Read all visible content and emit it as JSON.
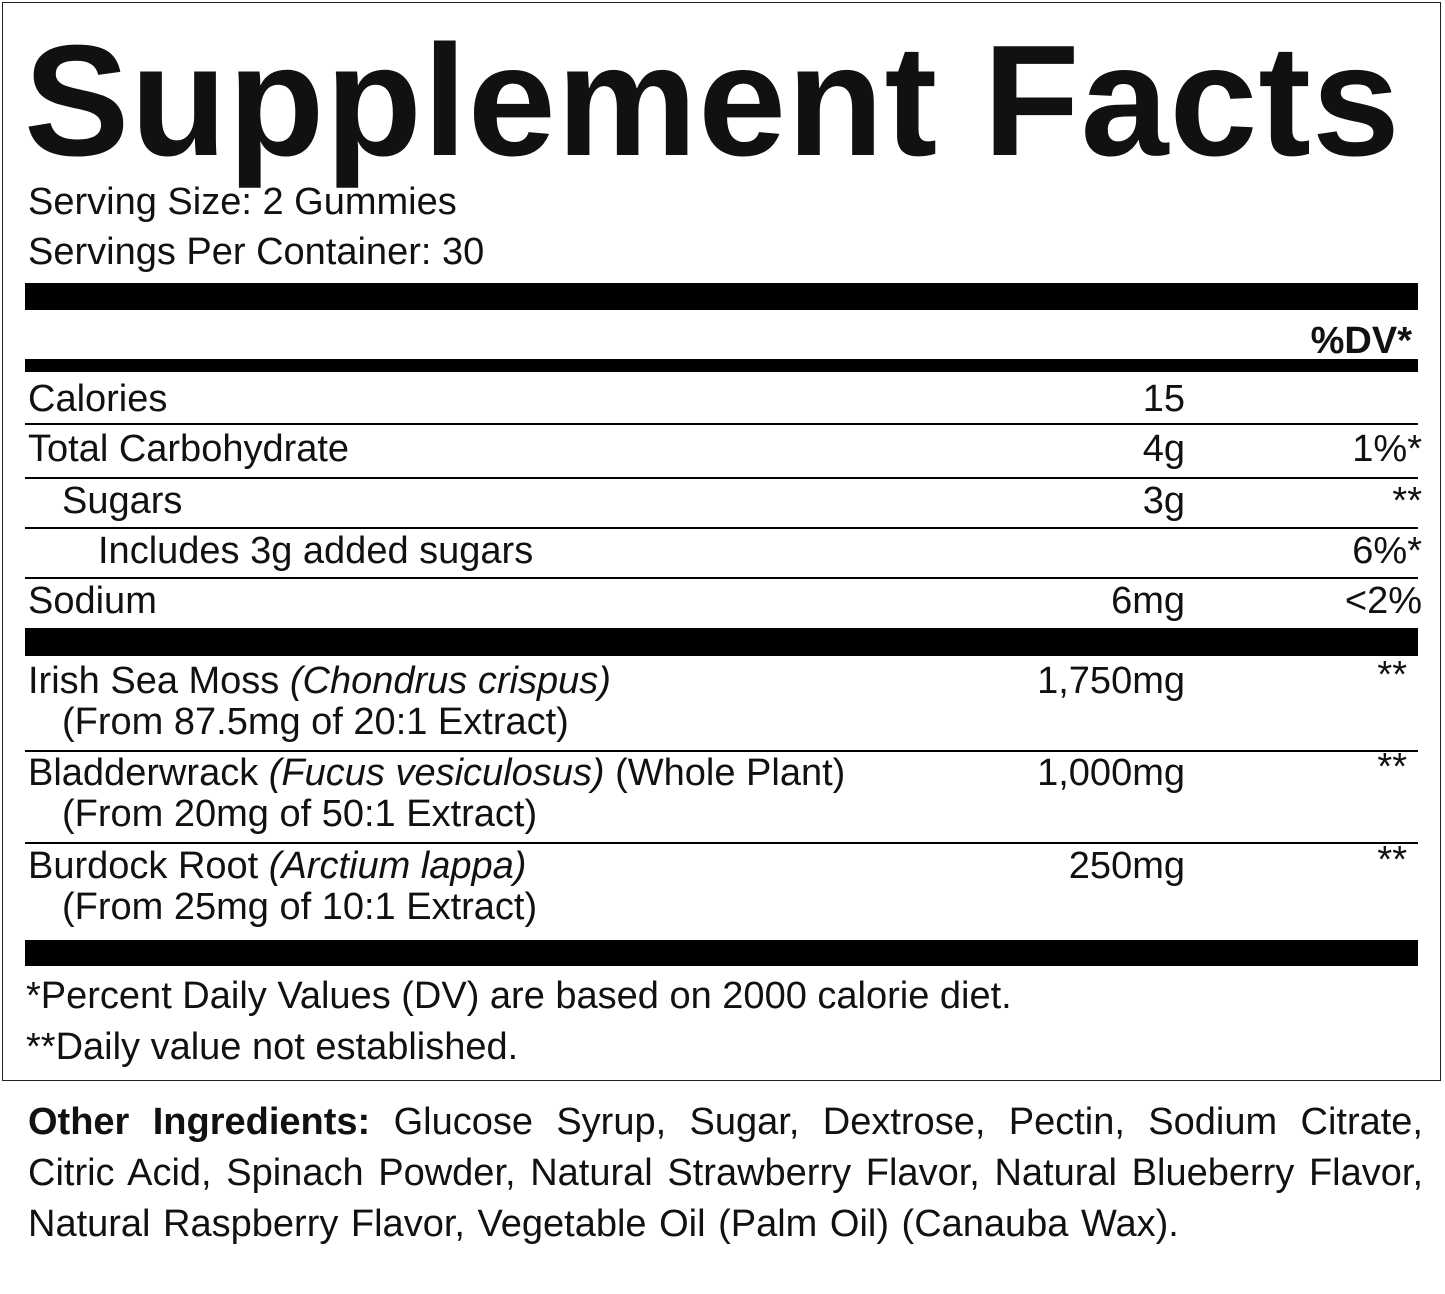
{
  "header": {
    "title": "Supplement Facts",
    "serving_size": "Serving Size: 2 Gummies",
    "servings_per_container": "Servings Per Container: 30",
    "dv_header": "%DV*"
  },
  "nutrients": [
    {
      "name": "Calories",
      "amount": "15",
      "dv": null
    },
    {
      "name": "Total Carbohydrate",
      "amount": "4g",
      "dv": "1%*"
    },
    {
      "name": "Sugars",
      "amount": "3g",
      "dv": "**"
    },
    {
      "name": "Includes 3g added sugars",
      "amount": null,
      "dv": "6%*"
    },
    {
      "name": "Sodium",
      "amount": "6mg",
      "dv": "<2%"
    }
  ],
  "ingredients": [
    {
      "name": "Irish Sea Moss",
      "latin": "(Chondrus crispus)",
      "extra": null,
      "sub": "(From 87.5mg of 20:1 Extract)",
      "amount": "1,750mg",
      "dv": "**"
    },
    {
      "name": "Bladderwrack",
      "latin": "(Fucus vesiculosus)",
      "extra": "(Whole Plant)",
      "sub": "(From 20mg of 50:1 Extract)",
      "amount": "1,000mg",
      "dv": "**"
    },
    {
      "name": "Burdock Root",
      "latin": "(Arctium lappa)",
      "extra": null,
      "sub": "(From 25mg of 10:1 Extract)",
      "amount": "250mg",
      "dv": "**"
    }
  ],
  "footnotes": [
    "*Percent Daily Values (DV) are based on 2000 calorie diet.",
    "**Daily value not established."
  ],
  "other_ingredients": {
    "label": "Other Ingredients:",
    "text": "Glucose Syrup, Sugar, Dextrose, Pectin, Sodium Citrate, Citric Acid, Spinach Powder, Natural Strawberry Flavor, Natu­ral Blueberry Flavor, Natural Raspberry Flavor, Vegetable Oil (Palm Oil) (Canauba Wax)."
  }
}
